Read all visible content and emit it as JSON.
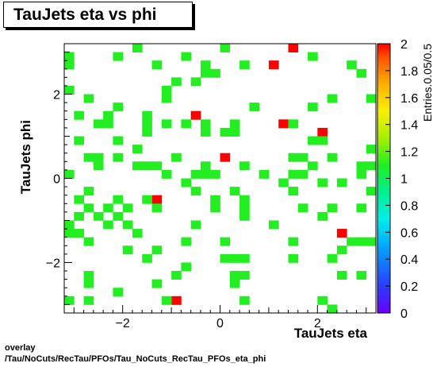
{
  "chart_data": {
    "type": "heatmap",
    "title": "TauJets eta vs phi",
    "xlabel": "TauJets eta",
    "ylabel": "TauJets phi",
    "zlabel": "Entries.0.05/0.5",
    "xlim": [
      -3.2,
      3.2
    ],
    "ylim": [
      -3.2,
      3.2
    ],
    "zlim": [
      0,
      2
    ],
    "x_ticks": [
      -2,
      0,
      2
    ],
    "x_tick_labels": [
      "−2",
      "0",
      "2"
    ],
    "y_ticks": [
      -2,
      0,
      2
    ],
    "y_tick_labels": [
      "−2",
      "0",
      "2"
    ],
    "z_ticks": [
      0,
      0.2,
      0.4,
      0.6,
      0.8,
      1,
      1.2,
      1.4,
      1.6,
      1.8,
      2
    ],
    "z_tick_labels": [
      "0",
      "0.2",
      "0.4",
      "0.6",
      "0.8",
      "1",
      "1.2",
      "1.4",
      "1.6",
      "1.8",
      "2"
    ],
    "bin_width_x": 0.2,
    "bin_width_y": 0.2,
    "bins": [
      {
        "x": 1.5,
        "y": 3.1,
        "z": 2
      },
      {
        "x": 1.1,
        "y": 2.7,
        "z": 2
      },
      {
        "x": -0.5,
        "y": 1.5,
        "z": 2
      },
      {
        "x": 1.3,
        "y": 1.3,
        "z": 2
      },
      {
        "x": 2.1,
        "y": 1.1,
        "z": 2
      },
      {
        "x": 0.1,
        "y": 0.5,
        "z": 2
      },
      {
        "x": -1.3,
        "y": -0.5,
        "z": 2
      },
      {
        "x": 2.5,
        "y": -1.3,
        "z": 2
      },
      {
        "x": -0.9,
        "y": -2.9,
        "z": 2
      },
      {
        "x": -1.7,
        "y": 3.1,
        "z": 1
      },
      {
        "x": 0.1,
        "y": 3.1,
        "z": 1
      },
      {
        "x": -3.1,
        "y": 2.9,
        "z": 1
      },
      {
        "x": -2.1,
        "y": 2.9,
        "z": 1
      },
      {
        "x": -0.7,
        "y": 2.9,
        "z": 1
      },
      {
        "x": 1.9,
        "y": 2.9,
        "z": 1
      },
      {
        "x": -3.1,
        "y": 2.7,
        "z": 1
      },
      {
        "x": -1.3,
        "y": 2.7,
        "z": 1
      },
      {
        "x": -0.3,
        "y": 2.7,
        "z": 1
      },
      {
        "x": 0.5,
        "y": 2.7,
        "z": 1
      },
      {
        "x": 2.7,
        "y": 2.7,
        "z": 1
      },
      {
        "x": -0.3,
        "y": 2.5,
        "z": 1
      },
      {
        "x": -0.1,
        "y": 2.5,
        "z": 1
      },
      {
        "x": 2.9,
        "y": 2.5,
        "z": 1
      },
      {
        "x": -0.9,
        "y": 2.3,
        "z": 1
      },
      {
        "x": -0.5,
        "y": 2.3,
        "z": 1
      },
      {
        "x": -3.1,
        "y": 2.1,
        "z": 1
      },
      {
        "x": -1.1,
        "y": 2.1,
        "z": 1
      },
      {
        "x": -2.7,
        "y": 1.9,
        "z": 1
      },
      {
        "x": -1.1,
        "y": 1.9,
        "z": 1
      },
      {
        "x": 2.3,
        "y": 1.9,
        "z": 1
      },
      {
        "x": 3.1,
        "y": 1.9,
        "z": 1
      },
      {
        "x": -2.1,
        "y": 1.7,
        "z": 1
      },
      {
        "x": 0.7,
        "y": 1.7,
        "z": 1
      },
      {
        "x": 1.9,
        "y": 1.7,
        "z": 1
      },
      {
        "x": -2.9,
        "y": 1.5,
        "z": 1
      },
      {
        "x": -2.3,
        "y": 1.5,
        "z": 1
      },
      {
        "x": -1.5,
        "y": 1.5,
        "z": 1
      },
      {
        "x": -2.5,
        "y": 1.3,
        "z": 1
      },
      {
        "x": -2.3,
        "y": 1.3,
        "z": 1
      },
      {
        "x": -1.5,
        "y": 1.3,
        "z": 1
      },
      {
        "x": -1.1,
        "y": 1.3,
        "z": 1
      },
      {
        "x": -0.7,
        "y": 1.3,
        "z": 1
      },
      {
        "x": -0.3,
        "y": 1.3,
        "z": 1
      },
      {
        "x": 0.3,
        "y": 1.3,
        "z": 1
      },
      {
        "x": 1.5,
        "y": 1.3,
        "z": 1
      },
      {
        "x": -1.5,
        "y": 1.1,
        "z": 1
      },
      {
        "x": -0.3,
        "y": 1.1,
        "z": 1
      },
      {
        "x": 0.1,
        "y": 1.1,
        "z": 1
      },
      {
        "x": 0.3,
        "y": 1.1,
        "z": 1
      },
      {
        "x": -2.9,
        "y": 0.9,
        "z": 1
      },
      {
        "x": -2.1,
        "y": 0.9,
        "z": 1
      },
      {
        "x": 1.9,
        "y": 0.9,
        "z": 1
      },
      {
        "x": 2.1,
        "y": 0.9,
        "z": 1
      },
      {
        "x": -1.7,
        "y": 0.7,
        "z": 1
      },
      {
        "x": 3.1,
        "y": 0.7,
        "z": 1
      },
      {
        "x": -2.7,
        "y": 0.5,
        "z": 1
      },
      {
        "x": -2.5,
        "y": 0.5,
        "z": 1
      },
      {
        "x": -2.1,
        "y": 0.5,
        "z": 1
      },
      {
        "x": -0.9,
        "y": 0.5,
        "z": 1
      },
      {
        "x": 1.5,
        "y": 0.5,
        "z": 1
      },
      {
        "x": 1.7,
        "y": 0.5,
        "z": 1
      },
      {
        "x": 2.3,
        "y": 0.5,
        "z": 1
      },
      {
        "x": -2.5,
        "y": 0.3,
        "z": 1
      },
      {
        "x": -1.7,
        "y": 0.3,
        "z": 1
      },
      {
        "x": -1.5,
        "y": 0.3,
        "z": 1
      },
      {
        "x": -1.3,
        "y": 0.3,
        "z": 1
      },
      {
        "x": -0.3,
        "y": 0.3,
        "z": 1
      },
      {
        "x": 0.5,
        "y": 0.3,
        "z": 1
      },
      {
        "x": 1.9,
        "y": 0.3,
        "z": 1
      },
      {
        "x": 2.9,
        "y": 0.3,
        "z": 1
      },
      {
        "x": 3.1,
        "y": 0.3,
        "z": 1
      },
      {
        "x": -3.1,
        "y": 0.1,
        "z": 1
      },
      {
        "x": -1.1,
        "y": 0.1,
        "z": 1
      },
      {
        "x": -0.5,
        "y": 0.1,
        "z": 1
      },
      {
        "x": -0.3,
        "y": 0.1,
        "z": 1
      },
      {
        "x": -0.1,
        "y": 0.1,
        "z": 1
      },
      {
        "x": 0.9,
        "y": 0.1,
        "z": 1
      },
      {
        "x": 1.5,
        "y": 0.1,
        "z": 1
      },
      {
        "x": 1.7,
        "y": 0.1,
        "z": 1
      },
      {
        "x": 2.9,
        "y": 0.1,
        "z": 1
      },
      {
        "x": -0.7,
        "y": -0.1,
        "z": 1
      },
      {
        "x": 1.3,
        "y": -0.1,
        "z": 1
      },
      {
        "x": 2.1,
        "y": -0.1,
        "z": 1
      },
      {
        "x": 2.5,
        "y": -0.1,
        "z": 1
      },
      {
        "x": -2.7,
        "y": -0.3,
        "z": 1
      },
      {
        "x": -0.5,
        "y": -0.3,
        "z": 1
      },
      {
        "x": 0.3,
        "y": -0.3,
        "z": 1
      },
      {
        "x": 1.5,
        "y": -0.3,
        "z": 1
      },
      {
        "x": 3.1,
        "y": -0.3,
        "z": 1
      },
      {
        "x": -2.9,
        "y": -0.5,
        "z": 1
      },
      {
        "x": -2.1,
        "y": -0.5,
        "z": 1
      },
      {
        "x": -1.5,
        "y": -0.5,
        "z": 1
      },
      {
        "x": -0.1,
        "y": -0.5,
        "z": 1
      },
      {
        "x": 0.5,
        "y": -0.5,
        "z": 1
      },
      {
        "x": -2.7,
        "y": -0.7,
        "z": 1
      },
      {
        "x": -2.3,
        "y": -0.7,
        "z": 1
      },
      {
        "x": -1.9,
        "y": -0.7,
        "z": 1
      },
      {
        "x": -1.3,
        "y": -0.7,
        "z": 1
      },
      {
        "x": -0.1,
        "y": -0.7,
        "z": 1
      },
      {
        "x": 0.5,
        "y": -0.7,
        "z": 1
      },
      {
        "x": 1.7,
        "y": -0.7,
        "z": 1
      },
      {
        "x": 2.3,
        "y": -0.7,
        "z": 1
      },
      {
        "x": 2.9,
        "y": -0.7,
        "z": 1
      },
      {
        "x": -2.9,
        "y": -0.9,
        "z": 1
      },
      {
        "x": -2.5,
        "y": -0.9,
        "z": 1
      },
      {
        "x": -2.1,
        "y": -0.9,
        "z": 1
      },
      {
        "x": 0.5,
        "y": -0.9,
        "z": 1
      },
      {
        "x": 2.1,
        "y": -0.9,
        "z": 1
      },
      {
        "x": -3.1,
        "y": -1.1,
        "z": 1
      },
      {
        "x": -2.3,
        "y": -1.1,
        "z": 1
      },
      {
        "x": -1.9,
        "y": -1.1,
        "z": 1
      },
      {
        "x": -0.5,
        "y": -1.1,
        "z": 1
      },
      {
        "x": 1.1,
        "y": -1.1,
        "z": 1
      },
      {
        "x": -3.1,
        "y": -1.3,
        "z": 1
      },
      {
        "x": -2.9,
        "y": -1.3,
        "z": 1
      },
      {
        "x": -1.7,
        "y": -1.3,
        "z": 1
      },
      {
        "x": -2.7,
        "y": -1.5,
        "z": 1
      },
      {
        "x": -0.7,
        "y": -1.5,
        "z": 1
      },
      {
        "x": 0.1,
        "y": -1.5,
        "z": 1
      },
      {
        "x": 1.5,
        "y": -1.5,
        "z": 1
      },
      {
        "x": 2.7,
        "y": -1.5,
        "z": 1
      },
      {
        "x": 2.9,
        "y": -1.5,
        "z": 1
      },
      {
        "x": 3.1,
        "y": -1.5,
        "z": 1
      },
      {
        "x": -1.9,
        "y": -1.7,
        "z": 1
      },
      {
        "x": -1.3,
        "y": -1.7,
        "z": 1
      },
      {
        "x": 2.5,
        "y": -1.7,
        "z": 1
      },
      {
        "x": -1.5,
        "y": -1.9,
        "z": 1
      },
      {
        "x": 0.1,
        "y": -1.9,
        "z": 1
      },
      {
        "x": 0.3,
        "y": -1.9,
        "z": 1
      },
      {
        "x": 0.5,
        "y": -1.9,
        "z": 1
      },
      {
        "x": 1.5,
        "y": -1.9,
        "z": 1
      },
      {
        "x": 2.3,
        "y": -1.9,
        "z": 1
      },
      {
        "x": -0.7,
        "y": -2.1,
        "z": 1
      },
      {
        "x": -2.7,
        "y": -2.3,
        "z": 1
      },
      {
        "x": -0.9,
        "y": -2.3,
        "z": 1
      },
      {
        "x": 0.3,
        "y": -2.3,
        "z": 1
      },
      {
        "x": 0.5,
        "y": -2.3,
        "z": 1
      },
      {
        "x": 2.5,
        "y": -2.3,
        "z": 1
      },
      {
        "x": 2.9,
        "y": -2.3,
        "z": 1
      },
      {
        "x": -2.7,
        "y": -2.5,
        "z": 1
      },
      {
        "x": -1.3,
        "y": -2.5,
        "z": 1
      },
      {
        "x": 0.3,
        "y": -2.5,
        "z": 1
      },
      {
        "x": -2.1,
        "y": -2.7,
        "z": 1
      },
      {
        "x": -3.1,
        "y": -2.9,
        "z": 1
      },
      {
        "x": -2.7,
        "y": -2.9,
        "z": 1
      },
      {
        "x": -1.1,
        "y": -2.9,
        "z": 1
      },
      {
        "x": 0.5,
        "y": -2.9,
        "z": 1
      },
      {
        "x": 2.1,
        "y": -2.9,
        "z": 1
      },
      {
        "x": 2.3,
        "y": -3.1,
        "z": 1
      }
    ],
    "grid": false,
    "legend": "color palette on right"
  },
  "footer": {
    "line1": "overlay",
    "line2": "/Tau/NoCuts/RecTau/PFOs/Tau_NoCuts_RecTau_PFOs_eta_phi"
  }
}
